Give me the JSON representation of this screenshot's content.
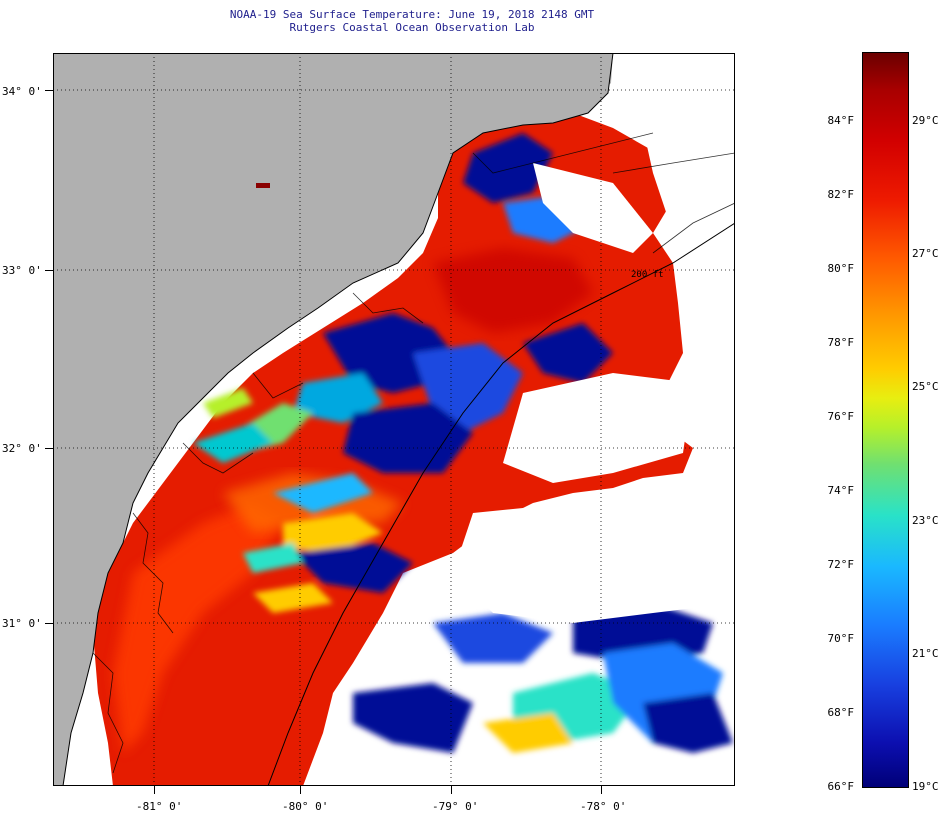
{
  "title_line1": "NOAA-19 Sea Surface Temperature:  June 19, 2018 2148 GMT",
  "title_line2": "Rutgers Coastal Ocean Observation Lab",
  "lat_labels": [
    "34° 0'",
    "33° 0'",
    "32° 0'",
    "31° 0'"
  ],
  "lon_labels": [
    "-81° 0'",
    "-80° 0'",
    "-79° 0'",
    "-78° 0'"
  ],
  "isobath_label": "200 ft",
  "colorbar": {
    "fahrenheit_labels": [
      "84°F",
      "82°F",
      "80°F",
      "78°F",
      "76°F",
      "74°F",
      "72°F",
      "70°F",
      "68°F",
      "66°F"
    ],
    "celsius_labels": [
      "29°C",
      "27°C",
      "25°C",
      "23°C",
      "21°C",
      "19°C"
    ],
    "range_f": [
      66,
      86
    ],
    "colors": {
      "warm": "#e81400",
      "cool": "#000a96",
      "land": "#b0b0b0",
      "cloud": "#ffffff"
    }
  }
}
